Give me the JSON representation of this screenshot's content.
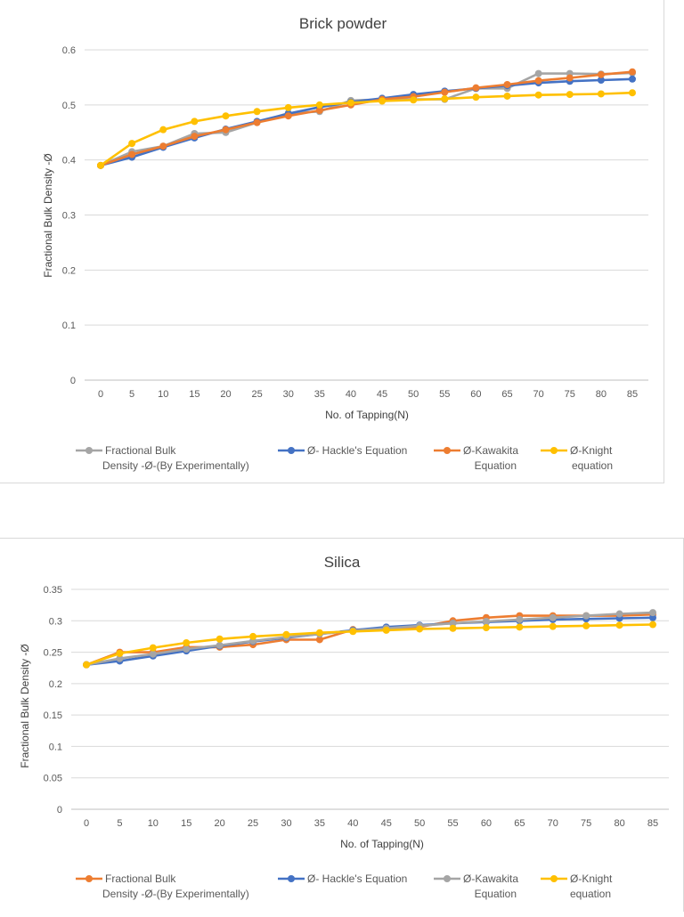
{
  "chart_data": [
    {
      "type": "line",
      "title": "Brick powder",
      "xlabel": "No. of Tapping(N)",
      "ylabel": "Fractional Bulk Density -Ø",
      "x": [
        0,
        5,
        10,
        15,
        20,
        25,
        30,
        35,
        40,
        45,
        50,
        55,
        60,
        65,
        70,
        75,
        80,
        85
      ],
      "ylim": [
        0,
        0.6
      ],
      "yticks": [
        "0",
        "0.1",
        "0.2",
        "0.3",
        "0.4",
        "0.5",
        "0.6"
      ],
      "grid": true,
      "legend": "bottom",
      "series": [
        {
          "name": "Fractional Bulk Density -Ø-(By Experimentally)",
          "legend_lines": [
            "Fractional Bulk",
            "Density -Ø-(By Experimentally)"
          ],
          "color": "#a5a5a5",
          "values": [
            0.39,
            0.415,
            0.425,
            0.448,
            0.45,
            0.468,
            0.485,
            0.488,
            0.508,
            0.51,
            0.51,
            0.51,
            0.53,
            0.53,
            0.557,
            0.557,
            0.556,
            0.558
          ]
        },
        {
          "name": "Ø-  Hackle's Equation",
          "legend_lines": [
            "Ø-  Hackle's Equation"
          ],
          "color": "#4472c4",
          "values": [
            0.39,
            0.405,
            0.423,
            0.44,
            0.456,
            0.47,
            0.484,
            0.496,
            0.505,
            0.512,
            0.519,
            0.525,
            0.53,
            0.535,
            0.54,
            0.543,
            0.545,
            0.547
          ]
        },
        {
          "name": "Ø-Kawakita Equation",
          "legend_lines": [
            "Ø-Kawakita",
            "Equation"
          ],
          "color": "#ed7d31",
          "values": [
            0.39,
            0.41,
            0.425,
            0.443,
            0.455,
            0.468,
            0.48,
            0.49,
            0.5,
            0.51,
            0.515,
            0.523,
            0.531,
            0.537,
            0.544,
            0.549,
            0.555,
            0.56
          ]
        },
        {
          "name": "Ø-Knight equation",
          "legend_lines": [
            "Ø-Knight",
            "equation"
          ],
          "color": "#ffc000",
          "values": [
            0.39,
            0.43,
            0.455,
            0.47,
            0.48,
            0.488,
            0.495,
            0.5,
            0.504,
            0.507,
            0.509,
            0.511,
            0.514,
            0.516,
            0.518,
            0.519,
            0.52,
            0.522
          ]
        }
      ]
    },
    {
      "type": "line",
      "title": "Silica",
      "xlabel": "No. of Tapping(N)",
      "ylabel": "Fractional Bulk Density -Ø",
      "x": [
        0,
        5,
        10,
        15,
        20,
        25,
        30,
        35,
        40,
        45,
        50,
        55,
        60,
        65,
        70,
        75,
        80,
        85
      ],
      "ylim": [
        0,
        0.35
      ],
      "yticks": [
        "0",
        "0.05",
        "0.1",
        "0.15",
        "0.2",
        "0.25",
        "0.3",
        "0.35"
      ],
      "grid": true,
      "legend": "bottom",
      "series": [
        {
          "name": "Fractional Bulk Density -Ø-(By Experimentally)",
          "legend_lines": [
            "Fractional Bulk",
            "Density -Ø-(By Experimentally)"
          ],
          "color": "#ed7d31",
          "values": [
            0.23,
            0.25,
            0.25,
            0.258,
            0.258,
            0.262,
            0.27,
            0.27,
            0.286,
            0.286,
            0.29,
            0.3,
            0.305,
            0.308,
            0.308,
            0.308,
            0.308,
            0.31
          ]
        },
        {
          "name": "Ø-  Hackle's Equation",
          "legend_lines": [
            "Ø-  Hackle's Equation"
          ],
          "color": "#4472c4",
          "values": [
            0.23,
            0.236,
            0.244,
            0.252,
            0.26,
            0.267,
            0.273,
            0.279,
            0.285,
            0.29,
            0.293,
            0.296,
            0.298,
            0.3,
            0.302,
            0.303,
            0.304,
            0.305
          ]
        },
        {
          "name": "Ø-Kawakita Equation",
          "legend_lines": [
            "Ø-Kawakita",
            "Equation"
          ],
          "color": "#a5a5a5",
          "values": [
            0.23,
            0.24,
            0.247,
            0.255,
            0.261,
            0.268,
            0.274,
            0.279,
            0.284,
            0.288,
            0.292,
            0.296,
            0.299,
            0.302,
            0.305,
            0.308,
            0.311,
            0.313
          ]
        },
        {
          "name": "Ø-Knight equation",
          "legend_lines": [
            "Ø-Knight",
            "equation"
          ],
          "color": "#ffc000",
          "values": [
            0.23,
            0.248,
            0.257,
            0.265,
            0.271,
            0.275,
            0.278,
            0.281,
            0.283,
            0.285,
            0.287,
            0.288,
            0.289,
            0.29,
            0.291,
            0.292,
            0.293,
            0.294
          ]
        }
      ]
    }
  ]
}
